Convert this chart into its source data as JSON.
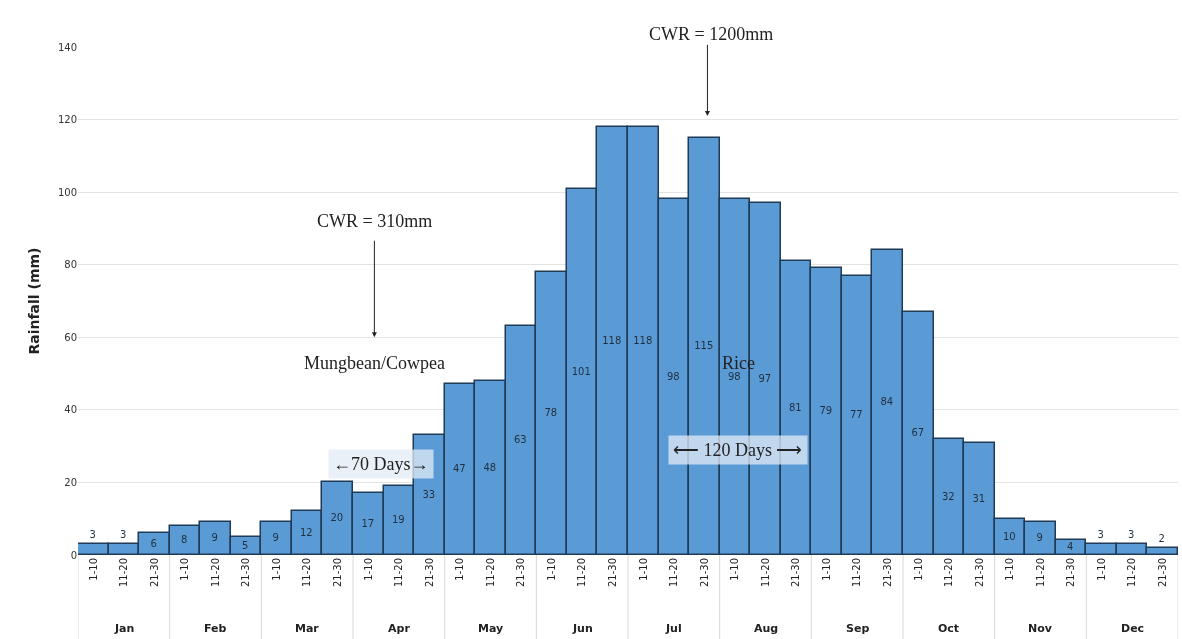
{
  "chart_data": {
    "type": "bar",
    "ylabel": "Rainfall (mm)",
    "categories": [
      "1-10",
      "11-20",
      "21-30",
      "1-10",
      "11-20",
      "21-30",
      "1-10",
      "11-20",
      "21-30",
      "1-10",
      "11-20",
      "21-30",
      "1-10",
      "11-20",
      "21-30",
      "1-10",
      "11-20",
      "21-30",
      "1-10",
      "11-20",
      "21-30",
      "1-10",
      "11-20",
      "21-30",
      "1-10",
      "11-20",
      "21-30",
      "1-10",
      "11-20",
      "21-30",
      "1-10",
      "11-20",
      "21-30",
      "1-10",
      "11-20",
      "21-30"
    ],
    "values": [
      3,
      3,
      6,
      8,
      9,
      5,
      9,
      12,
      20,
      17,
      19,
      33,
      47,
      48,
      63,
      78,
      101,
      118,
      118,
      98,
      115,
      98,
      97,
      81,
      79,
      77,
      84,
      67,
      32,
      31,
      10,
      9,
      4,
      3,
      3,
      2
    ],
    "color": "#5b9bd5",
    "data_labels": true,
    "ylim": [
      0,
      140
    ],
    "yticks": [
      0,
      20,
      40,
      60,
      80,
      100,
      120,
      140
    ],
    "grid": "y",
    "annotations": [
      "CWR = 1200mm",
      "CWR = 310mm",
      "Mungbean/Cowpea",
      "Rice",
      "←70 Days→",
      "⟵ 120 Days ⟶",
      "Jan",
      "Feb",
      "Mar",
      "Apr",
      "May",
      "Jun",
      "Jul",
      "Aug",
      "Sep",
      "Oct",
      "Nov",
      "Dec"
    ]
  }
}
